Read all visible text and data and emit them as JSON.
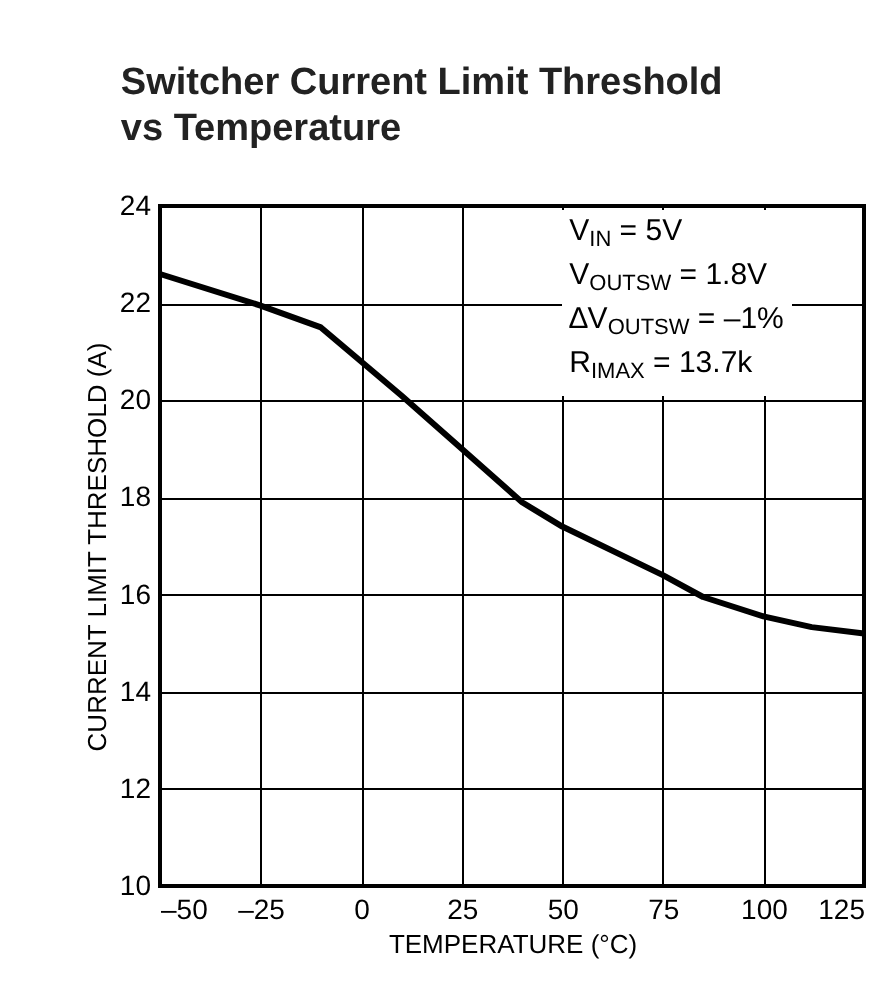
{
  "chart_data": {
    "type": "line",
    "title": "Switcher Current Limit Threshold\nvs Temperature",
    "xlabel": "TEMPERATURE (°C)",
    "ylabel": "CURRENT LIMIT THRESHOLD (A)",
    "x": [
      -50,
      -25,
      -10,
      0,
      10,
      25,
      40,
      50,
      75,
      85,
      100,
      112,
      125
    ],
    "series": [
      {
        "color": "#000000",
        "values": [
          22.6,
          21.95,
          21.5,
          20.8,
          20.1,
          19.0,
          17.9,
          17.4,
          16.4,
          15.95,
          15.55,
          15.33,
          15.2
        ]
      }
    ],
    "xlim": [
      -50,
      125
    ],
    "xticks": [
      {
        "value": -50,
        "label": "–50"
      },
      {
        "value": -25,
        "label": "–25"
      },
      0,
      25,
      50,
      75,
      100,
      125
    ],
    "ylim": [
      10,
      24
    ],
    "yticks": [
      10,
      12,
      14,
      16,
      18,
      20,
      22,
      24
    ],
    "grid": true,
    "marker": "none",
    "line_style": "solid",
    "annotations": [
      "V$_{IN}$ = 5V",
      "V$_{OUTSW}$ = 1.8V",
      "∆V$_{OUTSW}$ = –1%",
      "R$_{IMAX}$ = 13.7k"
    ]
  }
}
